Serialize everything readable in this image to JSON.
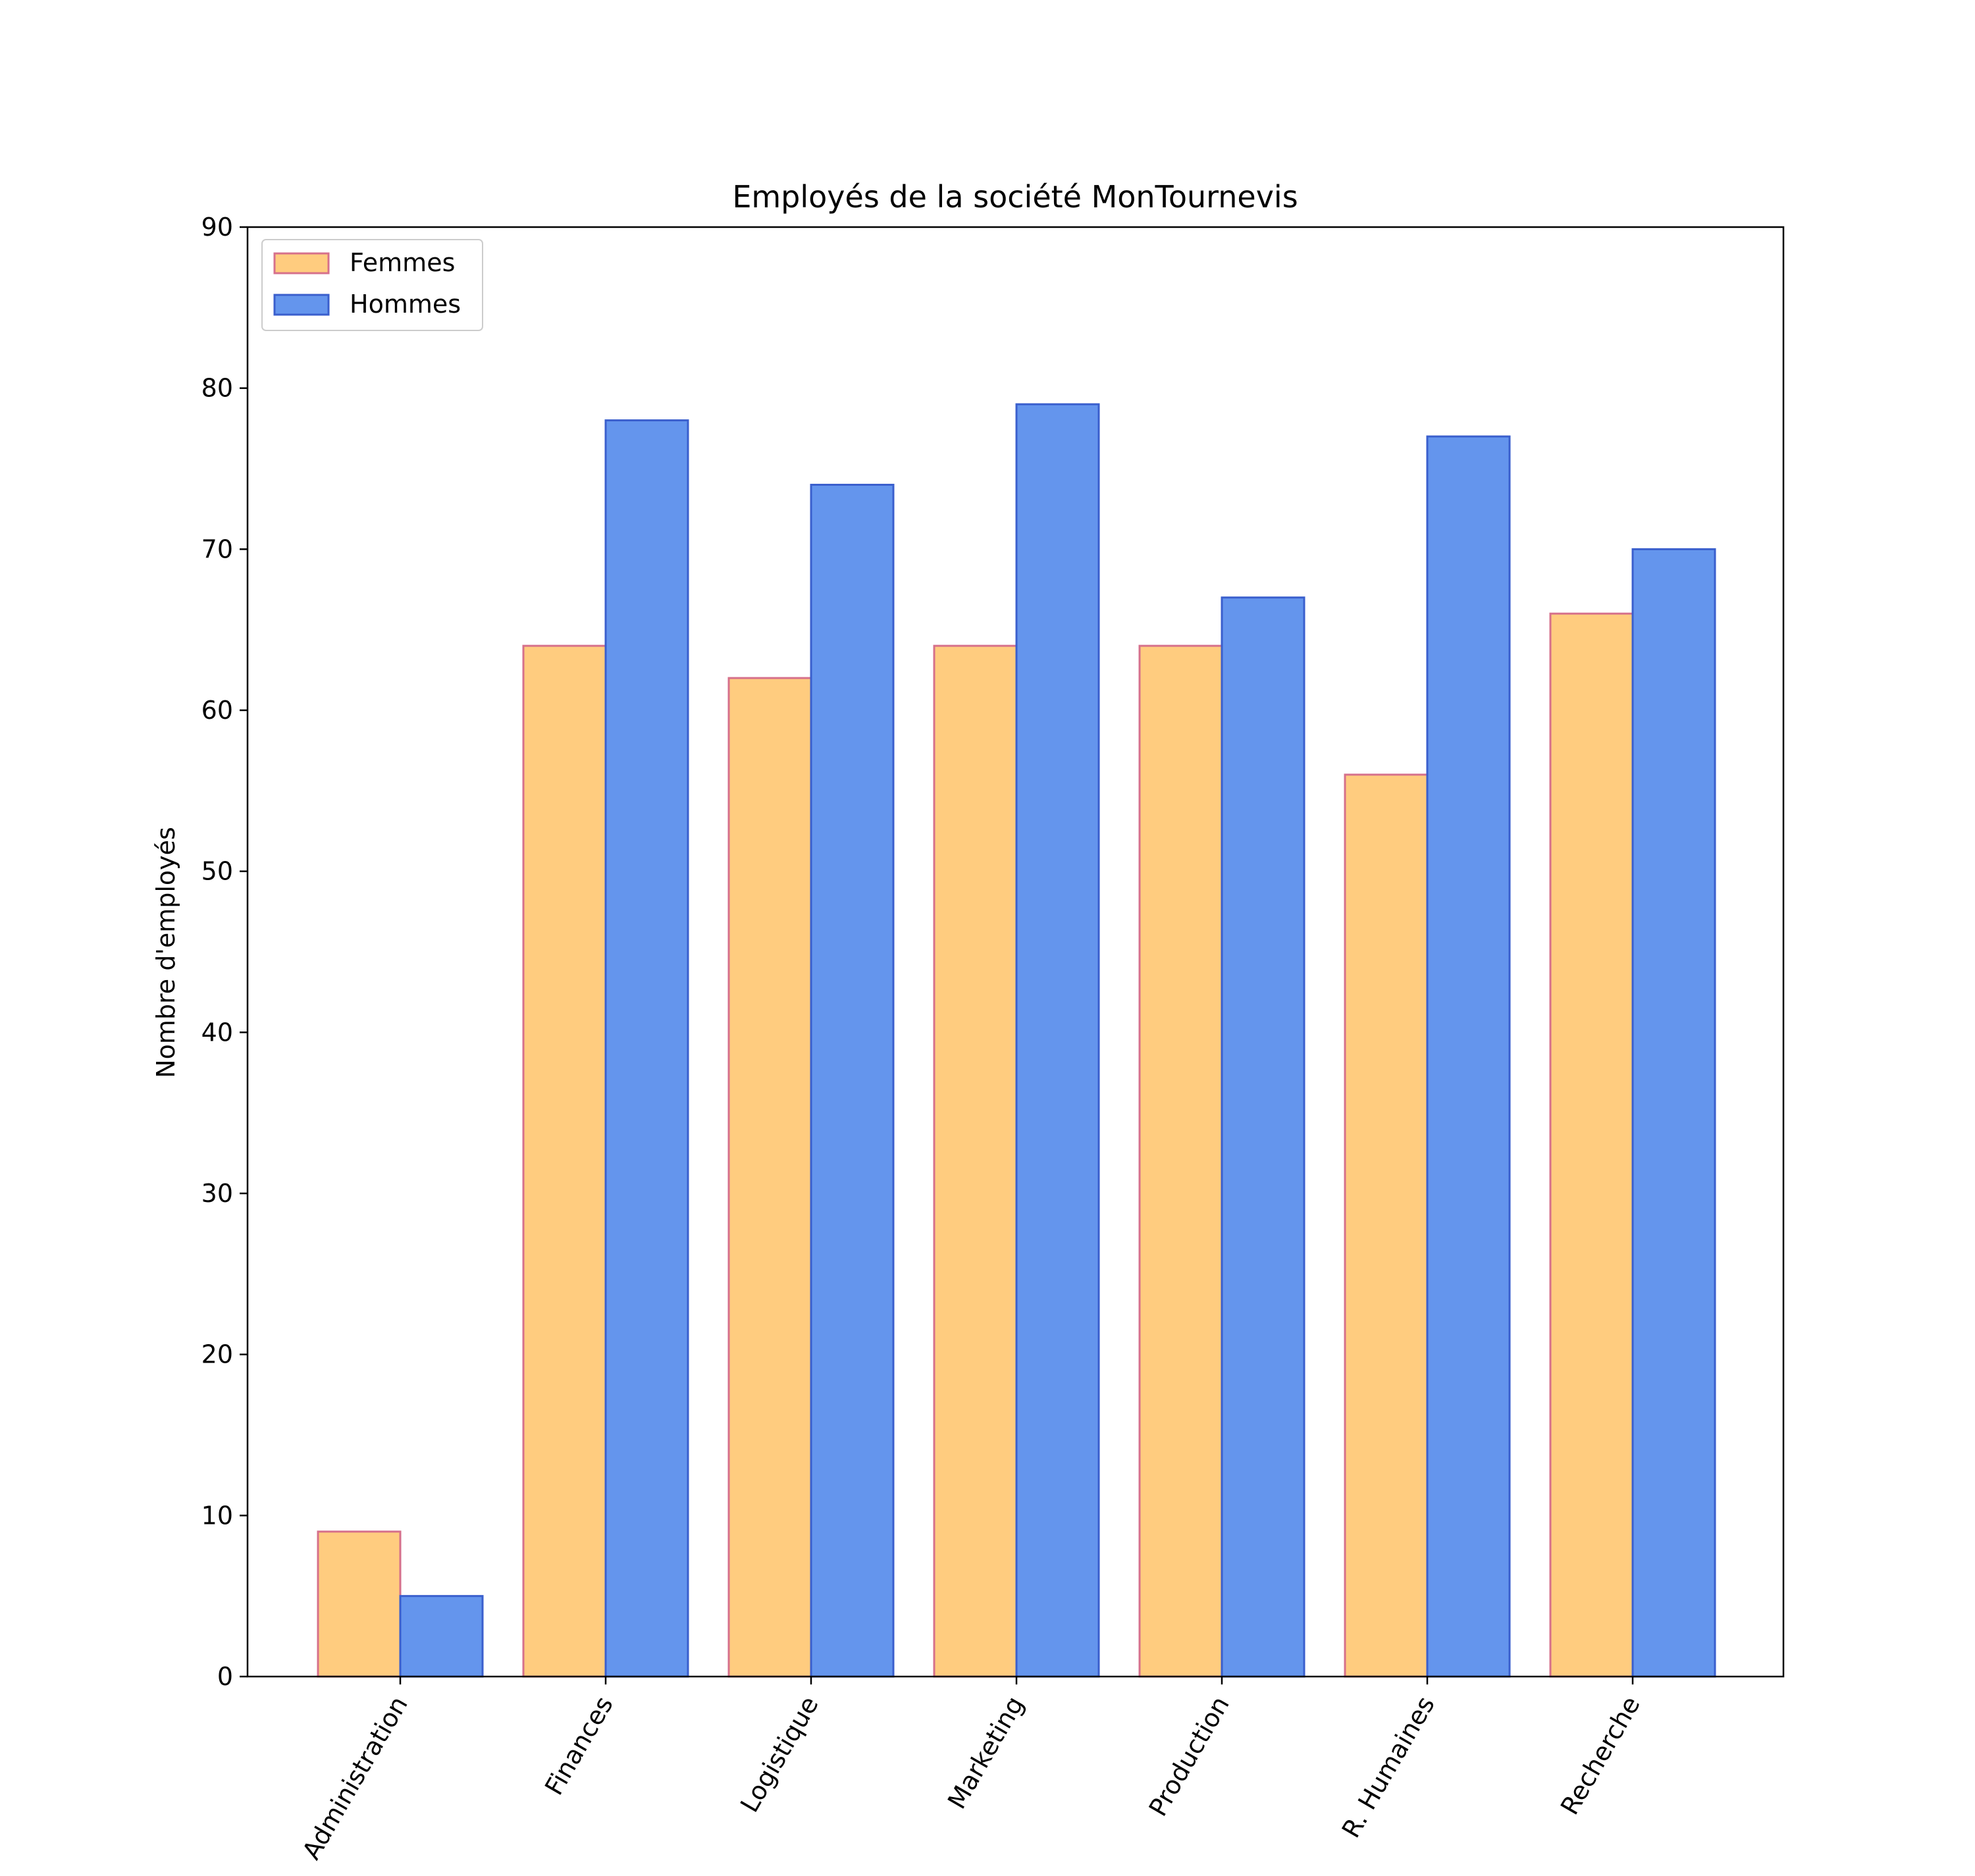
{
  "chart_data": {
    "type": "bar",
    "title": "Employés de la société MonTournevis",
    "xlabel": "",
    "ylabel": "Nombre d'employés",
    "categories": [
      "Administration",
      "Finances",
      "Logistique",
      "Marketing",
      "Production",
      "R. Humaines",
      "Recherche"
    ],
    "series": [
      {
        "name": "Femmes",
        "values": [
          9,
          64,
          62,
          64,
          64,
          56,
          66
        ],
        "fill": "#ffcc7f",
        "edge": "#d6708b"
      },
      {
        "name": "Hommes",
        "values": [
          5,
          78,
          74,
          79,
          67,
          77,
          70
        ],
        "fill": "#6495ed",
        "edge": "#3a5fcd"
      }
    ],
    "ylim": [
      0,
      90
    ],
    "yticks": [
      0,
      10,
      20,
      30,
      40,
      50,
      60,
      70,
      80,
      90
    ],
    "grid": false,
    "legend_position": "top-left"
  }
}
